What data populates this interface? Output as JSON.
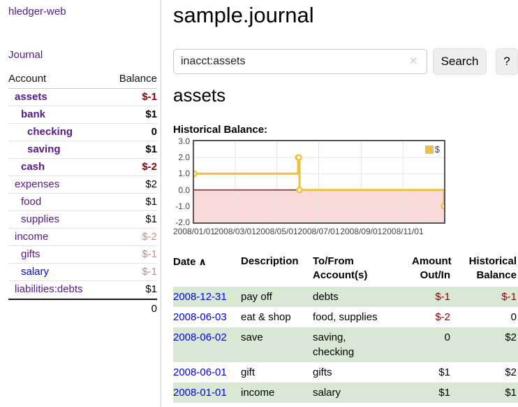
{
  "app": {
    "brand": "hledger-web"
  },
  "sidebar": {
    "journal_link": "Journal",
    "accounts": {
      "header_account": "Account",
      "header_balance": "Balance",
      "rows": [
        {
          "name": "assets",
          "balance": "$-1"
        },
        {
          "name": "bank",
          "balance": "$1"
        },
        {
          "name": "checking",
          "balance": "0"
        },
        {
          "name": "saving",
          "balance": "$1"
        },
        {
          "name": "cash",
          "balance": "$-2"
        },
        {
          "name": "expenses",
          "balance": "$2"
        },
        {
          "name": "food",
          "balance": "$1"
        },
        {
          "name": "supplies",
          "balance": "$1"
        },
        {
          "name": "income",
          "balance": "$-2"
        },
        {
          "name": "gifts",
          "balance": "$-1"
        },
        {
          "name": "salary",
          "balance": "$-1"
        },
        {
          "name": "liabilities:debts",
          "balance": "$1"
        }
      ],
      "total": "0"
    }
  },
  "main": {
    "title": "sample.journal",
    "search": {
      "value": "inacct:assets",
      "clear_glyph": "✕",
      "search_button": "Search",
      "help_button": "?"
    },
    "account_heading": "assets",
    "section_label": "Historical Balance:"
  },
  "register": {
    "headers": {
      "date": "Date",
      "sort_glyph": "∧",
      "description": "Description",
      "accounts_l1": "To/From",
      "accounts_l2": "Account(s)",
      "amount_l1": "Amount",
      "amount_l2": "Out/In",
      "balance_l1": "Historical",
      "balance_l2": "Balance"
    },
    "rows": [
      {
        "date": "2008-12-31",
        "description": "pay off",
        "accounts": [
          "debts"
        ],
        "amount": "$-1",
        "balance": "$-1"
      },
      {
        "date": "2008-06-03",
        "description": "eat & shop",
        "accounts": [
          "food, supplies"
        ],
        "amount": "$-2",
        "balance": "0"
      },
      {
        "date": "2008-06-02",
        "description": "save",
        "accounts": [
          "saving,",
          "checking"
        ],
        "amount": "0",
        "balance": "$2"
      },
      {
        "date": "2008-06-01",
        "description": "gift",
        "accounts": [
          "gifts"
        ],
        "amount": "$1",
        "balance": "$2"
      },
      {
        "date": "2008-01-01",
        "description": "income",
        "accounts": [
          "salary"
        ],
        "amount": "$1",
        "balance": "$1"
      }
    ]
  },
  "chart_data": {
    "type": "line",
    "step": true,
    "title": "Historical Balance",
    "series": [
      {
        "name": "$",
        "color": "#edc240",
        "points": [
          [
            "2008-01-01",
            1
          ],
          [
            "2008-06-01",
            2
          ],
          [
            "2008-06-02",
            2
          ],
          [
            "2008-06-03",
            0
          ],
          [
            "2008-12-31",
            -1
          ]
        ]
      }
    ],
    "x_ticks": [
      [
        "2008-01-01",
        "2008/01/01"
      ],
      [
        "2008-03-01",
        "2008/03/01"
      ],
      [
        "2008-05-01",
        "2008/05/01"
      ],
      [
        "2008-07-01",
        "2008/07/01"
      ],
      [
        "2008-09-01",
        "2008/09/01"
      ],
      [
        "2008-11-01",
        "2008/11/01"
      ]
    ],
    "y_ticks": [
      "3.0",
      "2.0",
      "1.0",
      "0.0",
      "-1.0",
      "-2.0"
    ],
    "ylim": [
      -2,
      3
    ],
    "xlim": [
      "2008-01-01",
      "2008-12-31"
    ],
    "legend": {
      "label": "$",
      "position": "top-right"
    },
    "grid": true,
    "negative_fill": "#fbdada",
    "zero_line_color": "#8b1a1a",
    "grid_color": "#e5e5e5",
    "border_color": "#545454"
  },
  "colors": {
    "link_visited": "#551a8b",
    "link": "#0000ee",
    "negative_strong": "#8b0000",
    "negative_soft": "#bc8f8f",
    "row_green": "#d9e8d4",
    "accent_gold": "#edc240"
  }
}
